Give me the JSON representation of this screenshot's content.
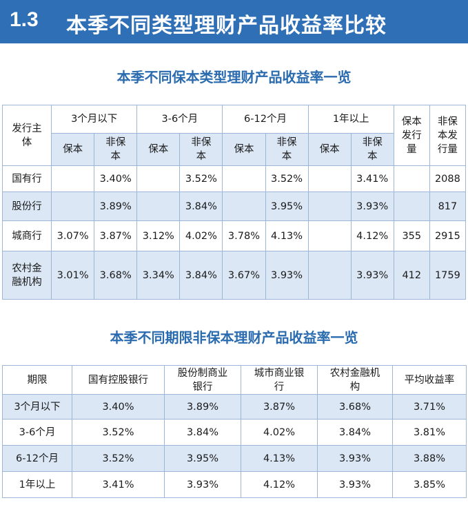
{
  "header": {
    "number": "1.3",
    "title": "本季不同类型理财产品收益率比较"
  },
  "table1": {
    "title": "本季不同保本类型理财产品收益率一览",
    "issuer_header": [
      "发行主",
      "体"
    ],
    "period_groups": [
      "3个月以下",
      "3-6个月",
      "6-12个月",
      "1年以上"
    ],
    "sub_guaranteed": "保本",
    "sub_nonguaranteed": [
      "非保",
      "本"
    ],
    "count_guaranteed": [
      "保本",
      "发行",
      "量"
    ],
    "count_nonguaranteed": [
      "非保",
      "本发",
      "行量"
    ],
    "rows": [
      {
        "issuer": [
          "国有行"
        ],
        "values": [
          "",
          "3.40%",
          "",
          "3.52%",
          "",
          "3.52%",
          "",
          "3.41%",
          "",
          "2088"
        ]
      },
      {
        "issuer": [
          "股份行"
        ],
        "values": [
          "",
          "3.89%",
          "",
          "3.84%",
          "",
          "3.95%",
          "",
          "3.93%",
          "",
          "817"
        ]
      },
      {
        "issuer": [
          "城商行"
        ],
        "values": [
          "3.07%",
          "3.87%",
          "3.12%",
          "4.02%",
          "3.78%",
          "4.13%",
          "",
          "4.12%",
          "355",
          "2915"
        ]
      },
      {
        "issuer": [
          "农村金",
          "融机构"
        ],
        "values": [
          "3.01%",
          "3.68%",
          "3.34%",
          "3.84%",
          "3.67%",
          "3.93%",
          "",
          "3.93%",
          "412",
          "1759"
        ]
      }
    ]
  },
  "table2": {
    "title": "本季不同期限非保本理财产品收益率一览",
    "headers": [
      [
        "期限"
      ],
      [
        "国有控股银行"
      ],
      [
        "股份制商业",
        "银行"
      ],
      [
        "城市商业银",
        "行"
      ],
      [
        "农村金融机",
        "构"
      ],
      [
        "平均收益率"
      ]
    ],
    "rows": [
      [
        "3个月以下",
        "3.40%",
        "3.89%",
        "3.87%",
        "3.68%",
        "3.71%"
      ],
      [
        "3-6个月",
        "3.52%",
        "3.84%",
        "4.02%",
        "3.84%",
        "3.81%"
      ],
      [
        "6-12个月",
        "3.52%",
        "3.95%",
        "4.13%",
        "3.93%",
        "3.88%"
      ],
      [
        "1年以上",
        "3.41%",
        "3.93%",
        "4.12%",
        "3.93%",
        "3.85%"
      ]
    ]
  },
  "colors": {
    "banner": "#2f6fb6",
    "subtitle": "#2a6bb0",
    "row_alt": "#dbe7f5",
    "border": "#9bb6d6"
  }
}
